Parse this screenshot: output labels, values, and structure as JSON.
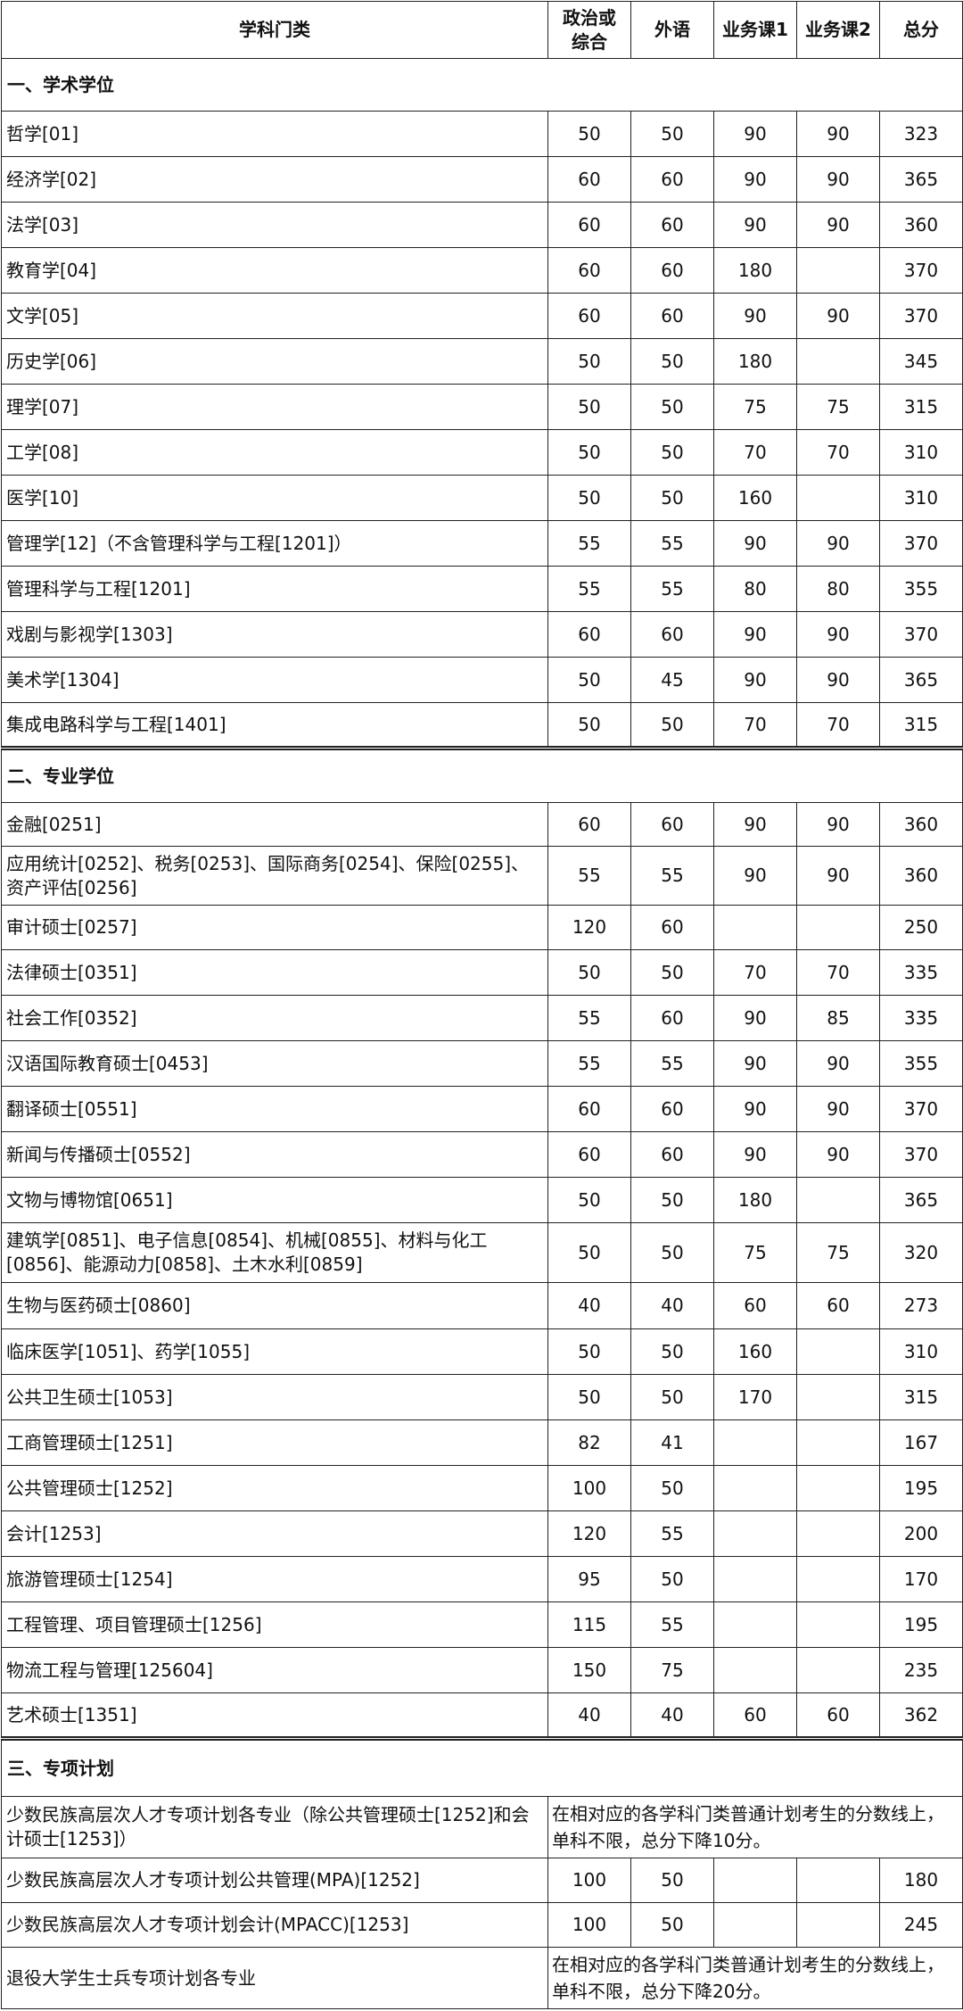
{
  "header": [
    "学科门类",
    "政治或综合",
    "外语",
    "业务课1",
    "业务课2",
    "总分"
  ],
  "sections": [
    {
      "title": "一、学术学位",
      "rows": [
        {
          "name": "哲学[01]",
          "politics": "50",
          "foreign": "50",
          "course1": "90",
          "course2": "90",
          "total": "323"
        },
        {
          "name": "经济学[02]",
          "politics": "60",
          "foreign": "60",
          "course1": "90",
          "course2": "90",
          "total": "365"
        },
        {
          "name": "法学[03]",
          "politics": "60",
          "foreign": "60",
          "course1": "90",
          "course2": "90",
          "total": "360"
        },
        {
          "name": "教育学[04]",
          "politics": "60",
          "foreign": "60",
          "course1": "180",
          "course2": "",
          "total": "370"
        },
        {
          "name": "文学[05]",
          "politics": "60",
          "foreign": "60",
          "course1": "90",
          "course2": "90",
          "total": "370"
        },
        {
          "name": "历史学[06]",
          "politics": "50",
          "foreign": "50",
          "course1": "180",
          "course2": "",
          "total": "345"
        },
        {
          "name": "理学[07]",
          "politics": "50",
          "foreign": "50",
          "course1": "75",
          "course2": "75",
          "total": "315"
        },
        {
          "name": "工学[08]",
          "politics": "50",
          "foreign": "50",
          "course1": "70",
          "course2": "70",
          "total": "310"
        },
        {
          "name": "医学[10]",
          "politics": "50",
          "foreign": "50",
          "course1": "160",
          "course2": "",
          "total": "310"
        },
        {
          "name": "管理学[12]（不含管理科学与工程[1201]）",
          "politics": "55",
          "foreign": "55",
          "course1": "90",
          "course2": "90",
          "total": "370"
        },
        {
          "name": "管理科学与工程[1201]",
          "politics": "55",
          "foreign": "55",
          "course1": "80",
          "course2": "80",
          "total": "355"
        },
        {
          "name": "戏剧与影视学[1303]",
          "politics": "60",
          "foreign": "60",
          "course1": "90",
          "course2": "90",
          "total": "370"
        },
        {
          "name": "美术学[1304]",
          "politics": "50",
          "foreign": "45",
          "course1": "90",
          "course2": "90",
          "total": "365"
        },
        {
          "name": "集成电路科学与工程[1401]",
          "politics": "50",
          "foreign": "50",
          "course1": "70",
          "course2": "70",
          "total": "315"
        }
      ]
    },
    {
      "title": "二、专业学位",
      "rows": [
        {
          "name": "金融[0251]",
          "politics": "60",
          "foreign": "60",
          "course1": "90",
          "course2": "90",
          "total": "360"
        },
        {
          "name": "应用统计[0252]、税务[0253]、国际商务[0254]、保险[0255]、资产评估[0256]",
          "politics": "55",
          "foreign": "55",
          "course1": "90",
          "course2": "90",
          "total": "360"
        },
        {
          "name": "审计硕士[0257]",
          "politics": "120",
          "foreign": "60",
          "course1": "",
          "course2": "",
          "total": "250"
        },
        {
          "name": "法律硕士[0351]",
          "politics": "50",
          "foreign": "50",
          "course1": "70",
          "course2": "70",
          "total": "335"
        },
        {
          "name": "社会工作[0352]",
          "politics": "55",
          "foreign": "60",
          "course1": "90",
          "course2": "85",
          "total": "335"
        },
        {
          "name": "汉语国际教育硕士[0453]",
          "politics": "55",
          "foreign": "55",
          "course1": "90",
          "course2": "90",
          "total": "355"
        },
        {
          "name": "翻译硕士[0551]",
          "politics": "60",
          "foreign": "60",
          "course1": "90",
          "course2": "90",
          "total": "370"
        },
        {
          "name": "新闻与传播硕士[0552]",
          "politics": "60",
          "foreign": "60",
          "course1": "90",
          "course2": "90",
          "total": "370"
        },
        {
          "name": "文物与博物馆[0651]",
          "politics": "50",
          "foreign": "50",
          "course1": "180",
          "course2": "",
          "total": "365"
        },
        {
          "name": "建筑学[0851]、电子信息[0854]、机械[0855]、材料与化工[0856]、能源动力[0858]、土木水利[0859]",
          "politics": "50",
          "foreign": "50",
          "course1": "75",
          "course2": "75",
          "total": "320"
        },
        {
          "name": "生物与医药硕士[0860]",
          "politics": "40",
          "foreign": "40",
          "course1": "60",
          "course2": "60",
          "total": "273"
        },
        {
          "name": "临床医学[1051]、药学[1055]",
          "politics": "50",
          "foreign": "50",
          "course1": "160",
          "course2": "",
          "total": "310"
        },
        {
          "name": "公共卫生硕士[1053]",
          "politics": "50",
          "foreign": "50",
          "course1": "170",
          "course2": "",
          "total": "315"
        },
        {
          "name": "工商管理硕士[1251]",
          "politics": "82",
          "foreign": "41",
          "course1": "",
          "course2": "",
          "total": "167"
        },
        {
          "name": "公共管理硕士[1252]",
          "politics": "100",
          "foreign": "50",
          "course1": "",
          "course2": "",
          "total": "195"
        },
        {
          "name": "会计[1253]",
          "politics": "120",
          "foreign": "55",
          "course1": "",
          "course2": "",
          "total": "200"
        },
        {
          "name": "旅游管理硕士[1254]",
          "politics": "95",
          "foreign": "50",
          "course1": "",
          "course2": "",
          "total": "170"
        },
        {
          "name": "工程管理、项目管理硕士[1256]",
          "politics": "115",
          "foreign": "55",
          "course1": "",
          "course2": "",
          "total": "195"
        },
        {
          "name": "物流工程与管理[125604]",
          "politics": "150",
          "foreign": "75",
          "course1": "",
          "course2": "",
          "total": "235"
        },
        {
          "name": "艺术硕士[1351]",
          "politics": "40",
          "foreign": "40",
          "course1": "60",
          "course2": "60",
          "total": "362"
        }
      ]
    },
    {
      "title": "三、专项计划",
      "rows": [
        {
          "name": "少数民族高层次人才专项计划各专业（除公共管理硕士[1252]和会计硕士[1253]）",
          "note": "在相对应的各学科门类普通计划考生的分数线上，单科不限，总分下降10分。"
        },
        {
          "name": "少数民族高层次人才专项计划公共管理(MPA)[1252]",
          "politics": "100",
          "foreign": "50",
          "course1": "",
          "course2": "",
          "total": "180"
        },
        {
          "name": "少数民族高层次人才专项计划会计(MPACC)[1253]",
          "politics": "100",
          "foreign": "50",
          "course1": "",
          "course2": "",
          "total": "245"
        },
        {
          "name": "退役大学生士兵专项计划各专业",
          "note": "在相对应的各学科门类普通计划考生的分数线上，单科不限，总分下降20分。"
        }
      ]
    }
  ]
}
